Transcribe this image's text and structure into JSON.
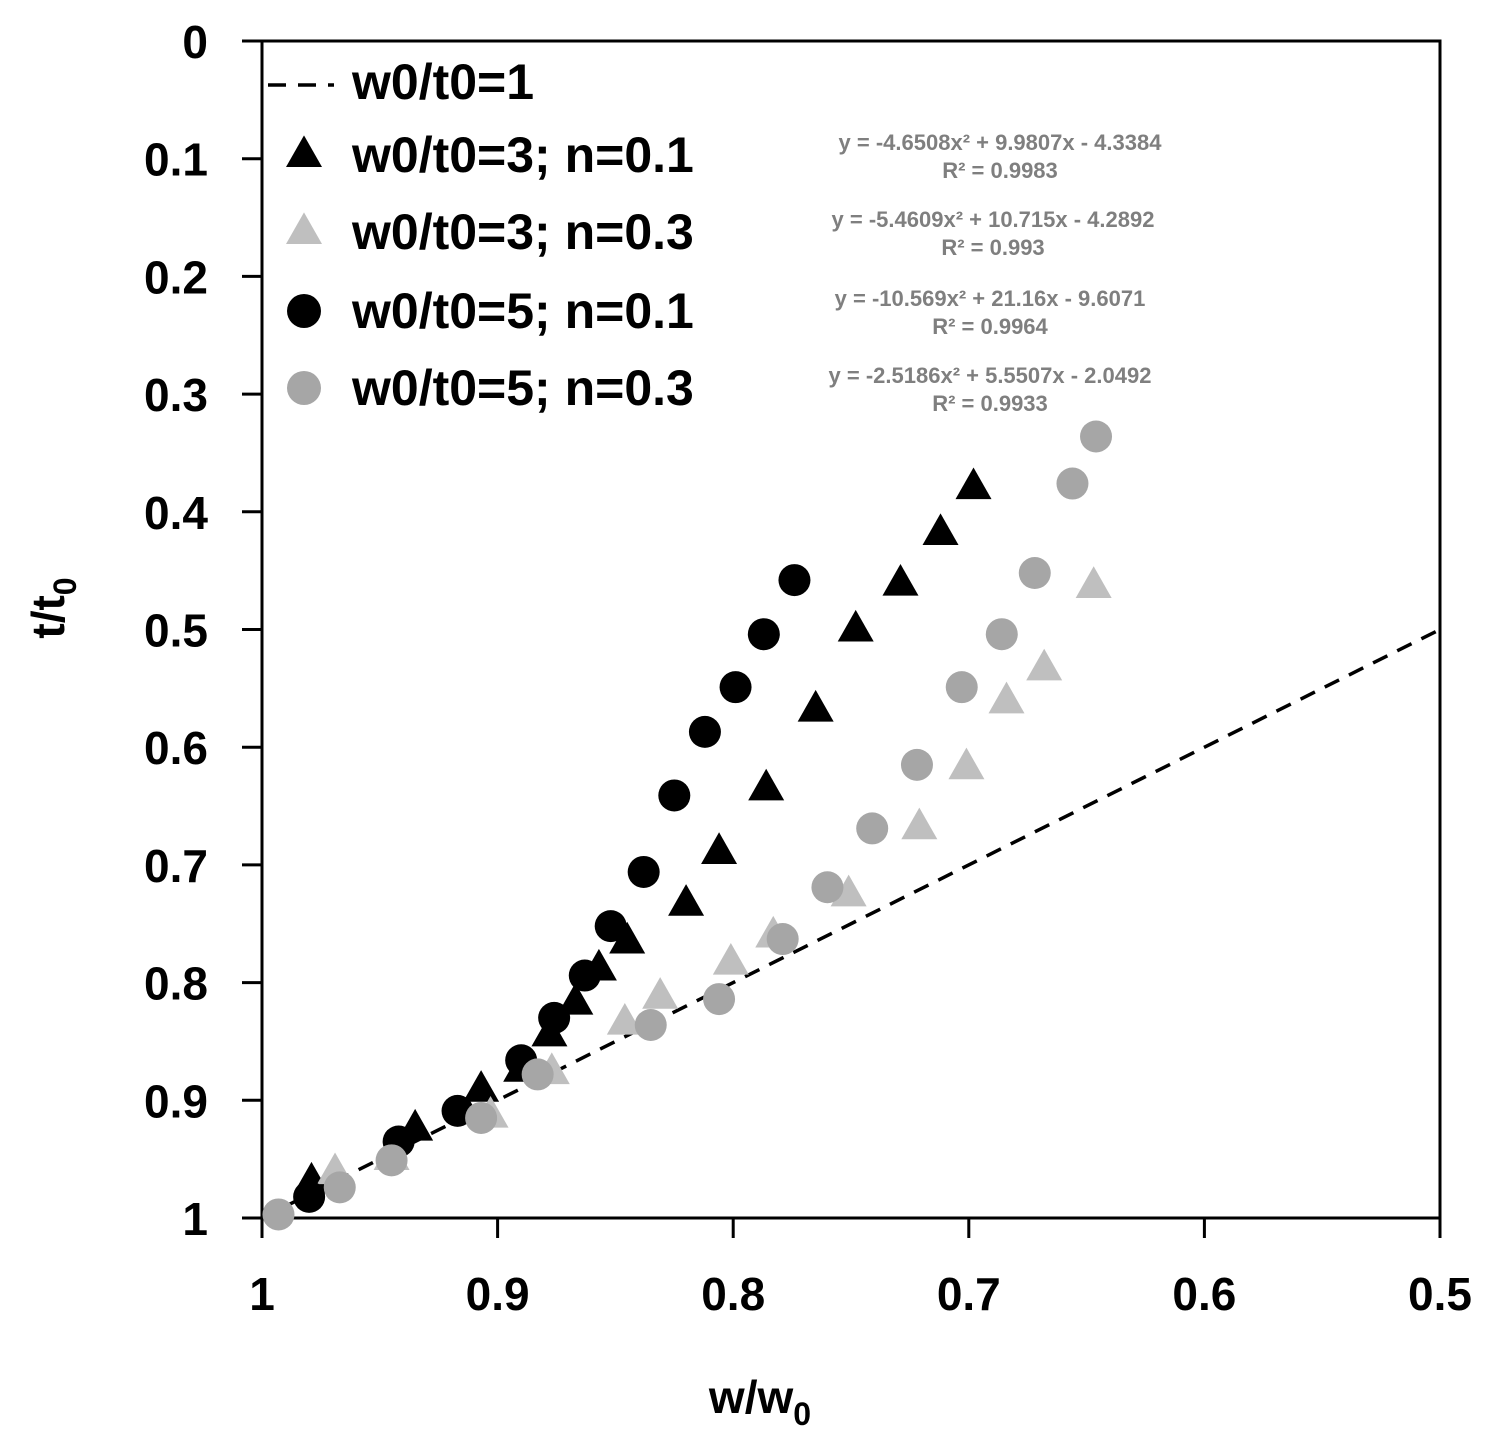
{
  "chart_data": {
    "type": "scatter",
    "title": "",
    "xlabel": "w/w",
    "xlabel_sub": "0",
    "ylabel": "t/t",
    "ylabel_sub": "0",
    "xlim": [
      1,
      0.5
    ],
    "ylim": [
      0,
      1
    ],
    "x_reversed": true,
    "y_reversed": true,
    "x_ticks": [
      "1",
      "0.9",
      "0.8",
      "0.7",
      "0.6",
      "0.5"
    ],
    "x_tick_values": [
      1,
      0.9,
      0.8,
      0.7,
      0.6,
      0.5
    ],
    "y_ticks": [
      "0",
      "0.1",
      "0.2",
      "0.3",
      "0.4",
      "0.5",
      "0.6",
      "0.7",
      "0.8",
      "0.9",
      "1"
    ],
    "y_tick_values": [
      0,
      0.1,
      0.2,
      0.3,
      0.4,
      0.5,
      0.6,
      0.7,
      0.8,
      0.9,
      1
    ],
    "grid": false,
    "legend_position": "top-left",
    "series": [
      {
        "name": "w0/t0=1",
        "kind": "line",
        "style": "dashed",
        "color": "#000000",
        "x": [
          1,
          0.5
        ],
        "y": [
          1,
          0.5
        ]
      },
      {
        "name": "w0/t0=3; n=0.1",
        "kind": "scatter",
        "marker": "triangle",
        "color": "#000000",
        "equation": "y = -4.6508x² + 9.9807x - 4.3384",
        "r2": "R² = 0.9983",
        "x": [
          0.979,
          0.935,
          0.907,
          0.89,
          0.878,
          0.867,
          0.857,
          0.845,
          0.82,
          0.806,
          0.786,
          0.765,
          0.748,
          0.729,
          0.712,
          0.698
        ],
        "y": [
          0.969,
          0.924,
          0.891,
          0.874,
          0.844,
          0.817,
          0.788,
          0.765,
          0.733,
          0.689,
          0.635,
          0.568,
          0.5,
          0.461,
          0.418,
          0.379
        ]
      },
      {
        "name": "w0/t0=3; n=0.3",
        "kind": "scatter",
        "marker": "triangle",
        "color": "#bfbfbf",
        "equation": "y = -5.4609x² + 10.715x - 4.2892",
        "r2": "R² = 0.993",
        "x": [
          0.969,
          0.945,
          0.903,
          0.877,
          0.846,
          0.831,
          0.801,
          0.783,
          0.751,
          0.721,
          0.701,
          0.684,
          0.668,
          0.647
        ],
        "y": [
          0.961,
          0.949,
          0.913,
          0.876,
          0.834,
          0.812,
          0.783,
          0.76,
          0.725,
          0.668,
          0.617,
          0.561,
          0.533,
          0.463
        ]
      },
      {
        "name": "w0/t0=5; n=0.1",
        "kind": "scatter",
        "marker": "circle",
        "color": "#000000",
        "equation": "y = -10.569x² + 21.16x - 9.6071",
        "r2": "R² = 0.9964",
        "x": [
          0.98,
          0.942,
          0.917,
          0.89,
          0.876,
          0.863,
          0.852,
          0.838,
          0.825,
          0.812,
          0.799,
          0.787,
          0.774
        ],
        "y": [
          0.982,
          0.935,
          0.909,
          0.866,
          0.83,
          0.794,
          0.752,
          0.706,
          0.641,
          0.587,
          0.549,
          0.504,
          0.458
        ]
      },
      {
        "name": "w0/t0=5; n=0.3",
        "kind": "scatter",
        "marker": "circle",
        "color": "#a6a6a6",
        "equation": "y = -2.5186x² + 5.5507x - 2.0492",
        "r2": "R² = 0.9933",
        "x": [
          0.993,
          0.967,
          0.945,
          0.907,
          0.883,
          0.835,
          0.806,
          0.779,
          0.76,
          0.741,
          0.722,
          0.703,
          0.686,
          0.672,
          0.656,
          0.646
        ],
        "y": [
          0.997,
          0.974,
          0.951,
          0.915,
          0.878,
          0.836,
          0.814,
          0.763,
          0.719,
          0.669,
          0.615,
          0.549,
          0.504,
          0.452,
          0.376,
          0.336
        ]
      }
    ]
  }
}
